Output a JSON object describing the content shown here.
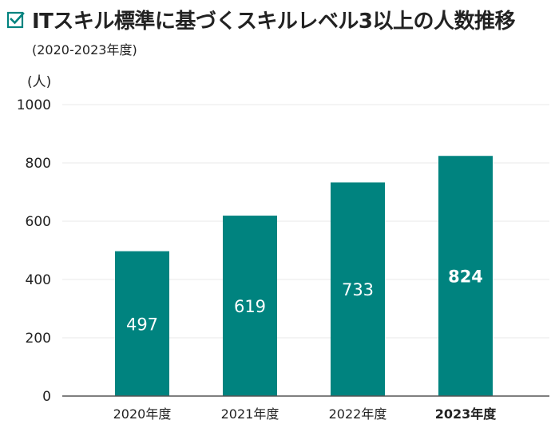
{
  "header": {
    "title": "ITスキル標準に基づくスキルレベル3以上の人数推移",
    "subtitle": "(2020-2023年度)",
    "icon": "checkbox-checked-icon"
  },
  "colors": {
    "accent": "#00837f",
    "axis": "#555555",
    "grid": "#e8e8e8",
    "text": "#222222",
    "bar_label": "#ffffff"
  },
  "chart_data": {
    "type": "bar",
    "title": "ITスキル標準に基づくスキルレベル3以上の人数推移",
    "subtitle": "(2020-2023年度)",
    "ylabel": "(人)",
    "xlabel": "",
    "categories": [
      "2020年度",
      "2021年度",
      "2022年度",
      "2023年度"
    ],
    "values": [
      497,
      619,
      733,
      824
    ],
    "highlight_index": 3,
    "ylim": [
      0,
      1000
    ],
    "yticks": [
      0,
      200,
      400,
      600,
      800,
      1000
    ],
    "grid": true,
    "legend": "none"
  }
}
